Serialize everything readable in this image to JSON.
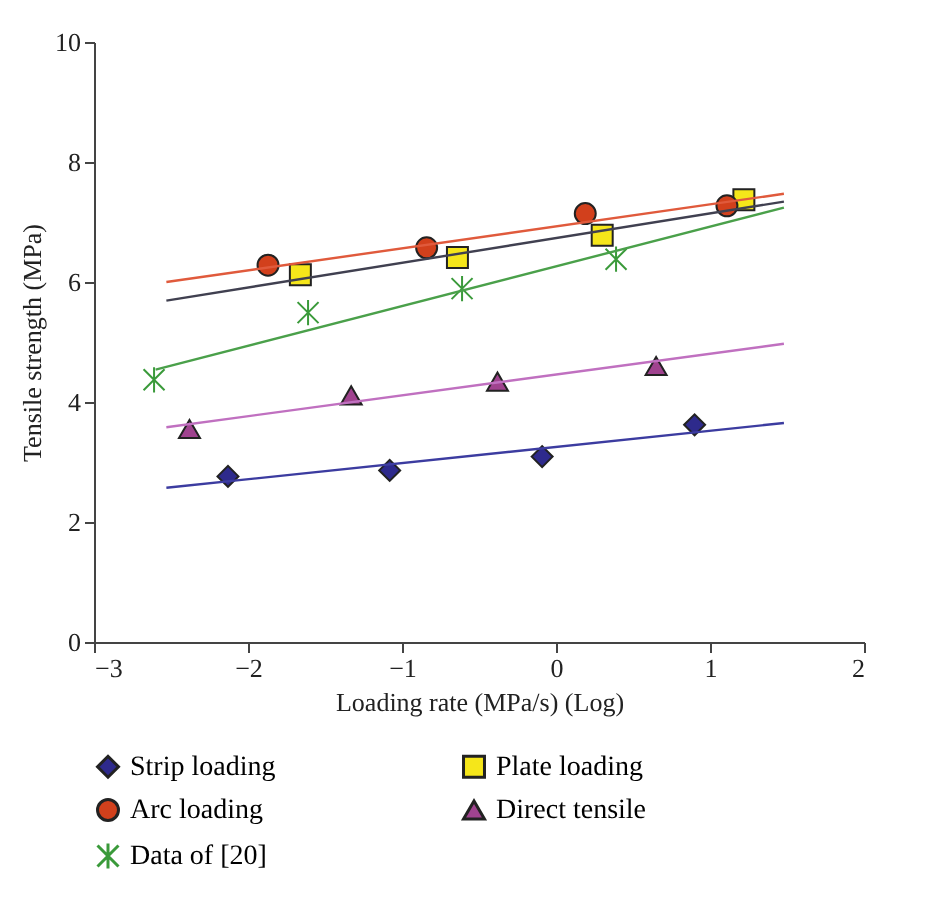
{
  "chart_data": {
    "type": "scatter",
    "xlabel": "Loading rate (MPa/s) (Log)",
    "ylabel": "Tensile strength (MPa)",
    "xlim": [
      -3,
      2
    ],
    "xticks": [
      -3,
      -2,
      -1,
      0,
      1,
      2
    ],
    "ylim": [
      0,
      10
    ],
    "yticks": [
      0,
      2,
      4,
      6,
      8,
      10
    ],
    "grid": false,
    "legend": "bottom",
    "series": [
      {
        "name": "Strip loading",
        "marker": "diamond",
        "color": "#2e2a8c",
        "x": [
          -2.13,
          -1.08,
          -0.09,
          0.9
        ],
        "values": [
          2.76,
          2.86,
          3.09,
          3.62
        ]
      },
      {
        "name": "Plate loading",
        "marker": "square",
        "color": "#f5e61a",
        "x": [
          -1.66,
          -0.64,
          0.3,
          1.22
        ],
        "values": [
          6.12,
          6.41,
          6.78,
          7.37
        ]
      },
      {
        "name": "Arc loading",
        "marker": "circle",
        "color": "#d2401c",
        "x": [
          -1.87,
          -0.84,
          0.19,
          1.11
        ],
        "values": [
          6.28,
          6.57,
          7.14,
          7.27
        ]
      },
      {
        "name": "Direct tensile",
        "marker": "triangle",
        "color": "#a0438f",
        "x": [
          -2.38,
          -1.33,
          -0.38,
          0.65
        ],
        "values": [
          3.55,
          4.11,
          4.34,
          4.6
        ]
      },
      {
        "name": "Data of [20]",
        "marker": "cross",
        "color": "#3a9a3a",
        "x": [
          -2.61,
          -1.61,
          -0.61,
          0.39
        ],
        "values": [
          4.37,
          5.49,
          5.89,
          6.38
        ]
      },
      {
        "type": "line",
        "color": "#3c3ca0",
        "x": [
          -2.53,
          1.48
        ],
        "values": [
          2.57,
          3.65
        ]
      },
      {
        "type": "line",
        "color": "#404050",
        "x": [
          -2.53,
          1.48
        ],
        "values": [
          5.69,
          7.34
        ]
      },
      {
        "type": "line",
        "color": "#e05a3c",
        "x": [
          -2.53,
          1.48
        ],
        "values": [
          6.0,
          7.47
        ]
      },
      {
        "type": "line",
        "color": "#c070c0",
        "x": [
          -2.53,
          1.48
        ],
        "values": [
          3.58,
          4.97
        ]
      },
      {
        "type": "line",
        "color": "#4aa04a",
        "x": [
          -2.6,
          1.48
        ],
        "values": [
          4.54,
          7.24
        ]
      }
    ]
  }
}
